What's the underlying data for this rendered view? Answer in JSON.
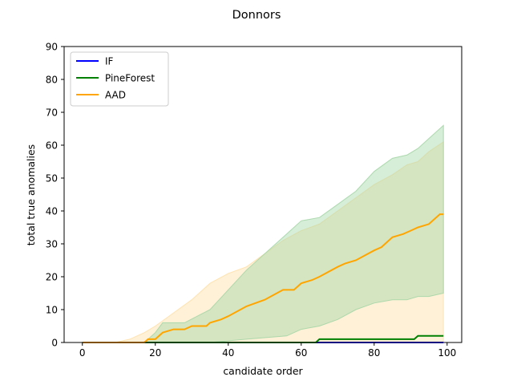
{
  "chart_data": {
    "type": "line",
    "title": "Donnors",
    "xlabel": "candidate order",
    "ylabel": "total true anomalies",
    "xlim": [
      -5,
      104
    ],
    "ylim": [
      0,
      90
    ],
    "xticks": [
      0,
      20,
      40,
      60,
      80,
      100
    ],
    "yticks": [
      0,
      10,
      20,
      30,
      40,
      50,
      60,
      70,
      80,
      90
    ],
    "grid": false,
    "legend_position": "upper-left",
    "series": [
      {
        "name": "IF",
        "color": "#0000ff",
        "points": [
          [
            0,
            0
          ],
          [
            99,
            0
          ]
        ],
        "band": null
      },
      {
        "name": "PineForest",
        "color": "#008000",
        "band_color": "#a5d6a7",
        "points": [
          [
            0,
            0
          ],
          [
            64,
            0
          ],
          [
            65,
            1
          ],
          [
            91,
            1
          ],
          [
            92,
            2
          ],
          [
            99,
            2
          ]
        ],
        "band": {
          "x": [
            0,
            17,
            20,
            22,
            28,
            35,
            45,
            56,
            60,
            65,
            70,
            75,
            80,
            85,
            89,
            92,
            95,
            99
          ],
          "upper": [
            0,
            0,
            3,
            6,
            6,
            10,
            22,
            33,
            37,
            38,
            42,
            46,
            52,
            56,
            57,
            59,
            62,
            66
          ],
          "lower": [
            0,
            0,
            0,
            0,
            0,
            0,
            1,
            2,
            4,
            5,
            7,
            10,
            12,
            13,
            13,
            14,
            14,
            15
          ]
        }
      },
      {
        "name": "AAD",
        "color": "#ffa500",
        "band_color": "#ffe0a8",
        "points": [
          [
            0,
            0
          ],
          [
            9,
            0
          ],
          [
            17,
            0
          ],
          [
            18,
            1
          ],
          [
            20,
            1
          ],
          [
            22,
            3
          ],
          [
            25,
            4
          ],
          [
            28,
            4
          ],
          [
            30,
            5
          ],
          [
            34,
            5
          ],
          [
            35,
            6
          ],
          [
            38,
            7
          ],
          [
            40,
            8
          ],
          [
            45,
            11
          ],
          [
            50,
            13
          ],
          [
            55,
            16
          ],
          [
            58,
            16
          ],
          [
            60,
            18
          ],
          [
            63,
            19
          ],
          [
            65,
            20
          ],
          [
            70,
            23
          ],
          [
            72,
            24
          ],
          [
            75,
            25
          ],
          [
            80,
            28
          ],
          [
            82,
            29
          ],
          [
            85,
            32
          ],
          [
            88,
            33
          ],
          [
            90,
            34
          ],
          [
            92,
            35
          ],
          [
            95,
            36
          ],
          [
            98,
            39
          ],
          [
            99,
            39
          ]
        ],
        "band": {
          "x": [
            0,
            9,
            13,
            17,
            20,
            25,
            30,
            35,
            40,
            45,
            50,
            55,
            60,
            65,
            70,
            75,
            80,
            85,
            89,
            92,
            95,
            99
          ],
          "upper": [
            0,
            0,
            1,
            3,
            5,
            9,
            13,
            18,
            21,
            23,
            27,
            31,
            34,
            36,
            40,
            44,
            48,
            51,
            54,
            55,
            58,
            61
          ],
          "lower": [
            0,
            0,
            0,
            0,
            0,
            0,
            0,
            0,
            0,
            0,
            0,
            0,
            0,
            0,
            0,
            0,
            0,
            0,
            0,
            0,
            0,
            0
          ]
        }
      }
    ]
  }
}
